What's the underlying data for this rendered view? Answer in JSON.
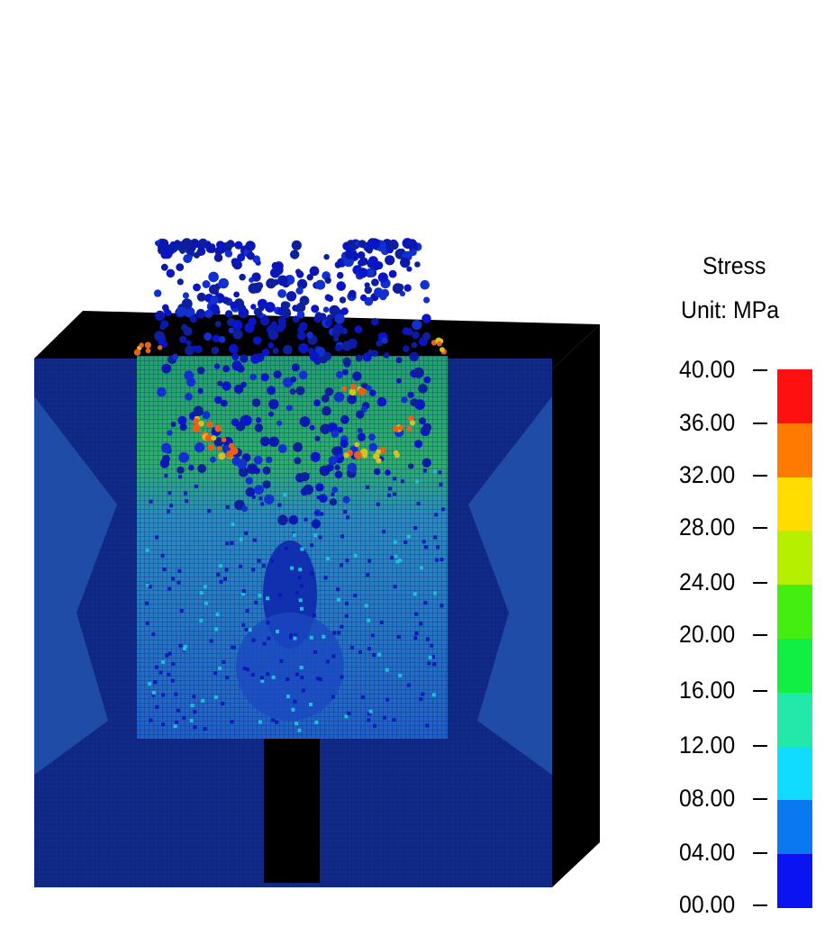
{
  "legend": {
    "title": "Stress",
    "unit": "Unit: MPa",
    "ticks": [
      "40.00",
      "36.00",
      "32.00",
      "28.00",
      "24.00",
      "20.00",
      "16.00",
      "12.00",
      "08.00",
      "04.00",
      "00.00"
    ],
    "colors_top_to_bottom": [
      "#ff1010",
      "#ff7a00",
      "#ffdd00",
      "#b6f000",
      "#44ee10",
      "#11ee44",
      "#22e8aa",
      "#10dcff",
      "#0a78f0",
      "#0a14f0"
    ]
  },
  "palette": {
    "background": "#ffffff",
    "dark_blue": "#0d1f82",
    "mid_blue": "#1c45b8",
    "cyan_blue": "#2a86c8",
    "green": "#2dbb6a",
    "hot_orange": "#e86a18",
    "black": "#000000"
  }
}
